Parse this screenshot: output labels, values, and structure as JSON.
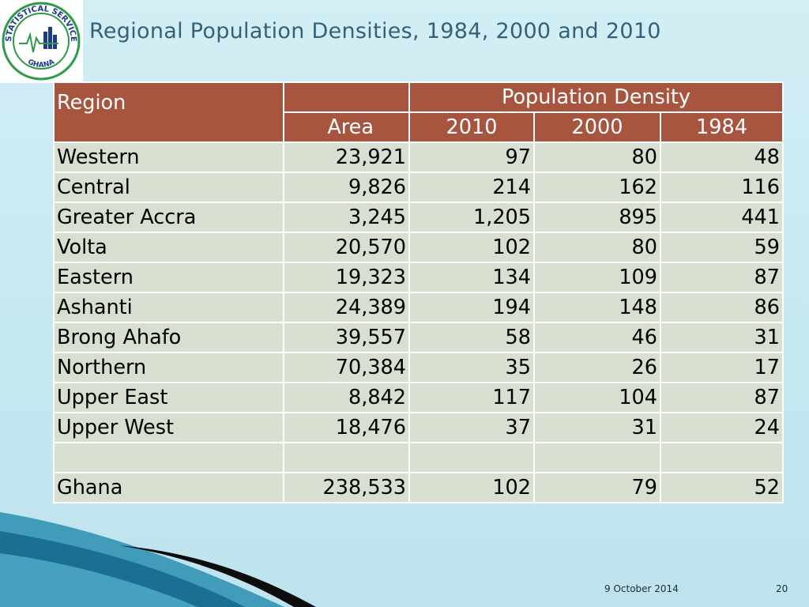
{
  "slide": {
    "title": "Regional Population Densities, 1984, 2000 and 2010",
    "logo_text_top": "STATISTICAL SERVICE",
    "logo_text_bottom": "GHANA",
    "footer_date": "9 October 2014",
    "page_number": "20"
  },
  "colors": {
    "header_fill": "#a85540",
    "row_fill": "#d7dfd0",
    "title_color": "#35607a",
    "logo_green": "#2e9a48",
    "logo_blue": "#1d3b8c"
  },
  "table": {
    "header_region": "Region",
    "header_population_density": "Population Density",
    "header_area": "Area",
    "header_years": [
      "2010",
      "2000",
      "1984"
    ],
    "rows": [
      {
        "region": "Western",
        "area": "23,921",
        "d2010": "97",
        "d2000": "80",
        "d1984": "48"
      },
      {
        "region": "Central",
        "area": "9,826",
        "d2010": "214",
        "d2000": "162",
        "d1984": "116"
      },
      {
        "region": "Greater Accra",
        "area": "3,245",
        "d2010": "1,205",
        "d2000": "895",
        "d1984": "441"
      },
      {
        "region": "Volta",
        "area": "20,570",
        "d2010": "102",
        "d2000": "80",
        "d1984": "59"
      },
      {
        "region": "Eastern",
        "area": "19,323",
        "d2010": "134",
        "d2000": "109",
        "d1984": "87"
      },
      {
        "region": "Ashanti",
        "area": "24,389",
        "d2010": "194",
        "d2000": "148",
        "d1984": "86"
      },
      {
        "region": "Brong Ahafo",
        "area": "39,557",
        "d2010": "58",
        "d2000": "46",
        "d1984": "31"
      },
      {
        "region": "Northern",
        "area": "70,384",
        "d2010": "35",
        "d2000": "26",
        "d1984": "17"
      },
      {
        "region": "Upper East",
        "area": "8,842",
        "d2010": "117",
        "d2000": "104",
        "d1984": "87"
      },
      {
        "region": "Upper West",
        "area": "18,476",
        "d2010": "37",
        "d2000": "31",
        "d1984": "24"
      },
      {
        "region": "",
        "area": "",
        "d2010": "",
        "d2000": "",
        "d1984": ""
      },
      {
        "region": "Ghana",
        "area": "238,533",
        "d2010": "102",
        "d2000": "79",
        "d1984": "52"
      }
    ]
  }
}
